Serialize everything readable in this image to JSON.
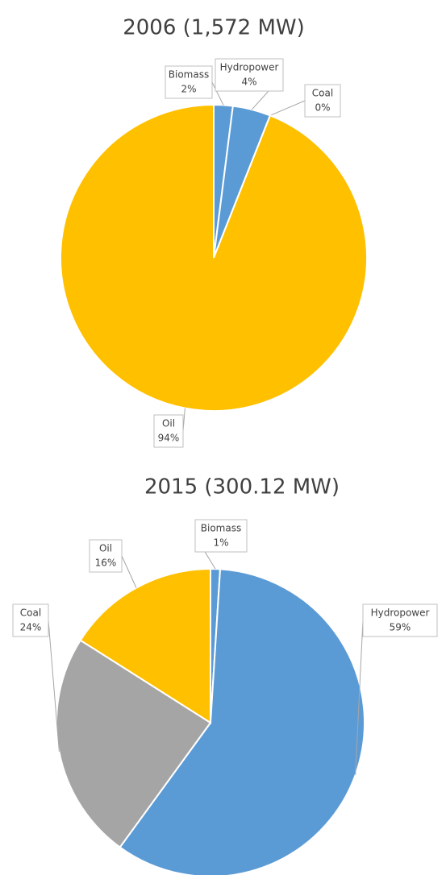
{
  "chart_data": [
    {
      "type": "pie",
      "title": "2006 (1,572 MW)",
      "categories": [
        "Biomass",
        "Hydropower",
        "Coal",
        "Oil"
      ],
      "values": [
        2,
        4,
        0,
        94
      ],
      "value_labels": [
        "2%",
        "4%",
        "0%",
        "94%"
      ],
      "colors": [
        "#5b9bd5",
        "#5b9bd5",
        "#a5a5a5",
        "#ffc000"
      ]
    },
    {
      "type": "pie",
      "title": "2015 (300.12 MW)",
      "categories": [
        "Biomass",
        "Hydropower",
        "Coal",
        "Oil"
      ],
      "values": [
        1,
        59,
        24,
        16
      ],
      "value_labels": [
        "1%",
        "59%",
        "24%",
        "16%"
      ],
      "colors": [
        "#5b9bd5",
        "#5b9bd5",
        "#a5a5a5",
        "#ffc000"
      ]
    }
  ]
}
